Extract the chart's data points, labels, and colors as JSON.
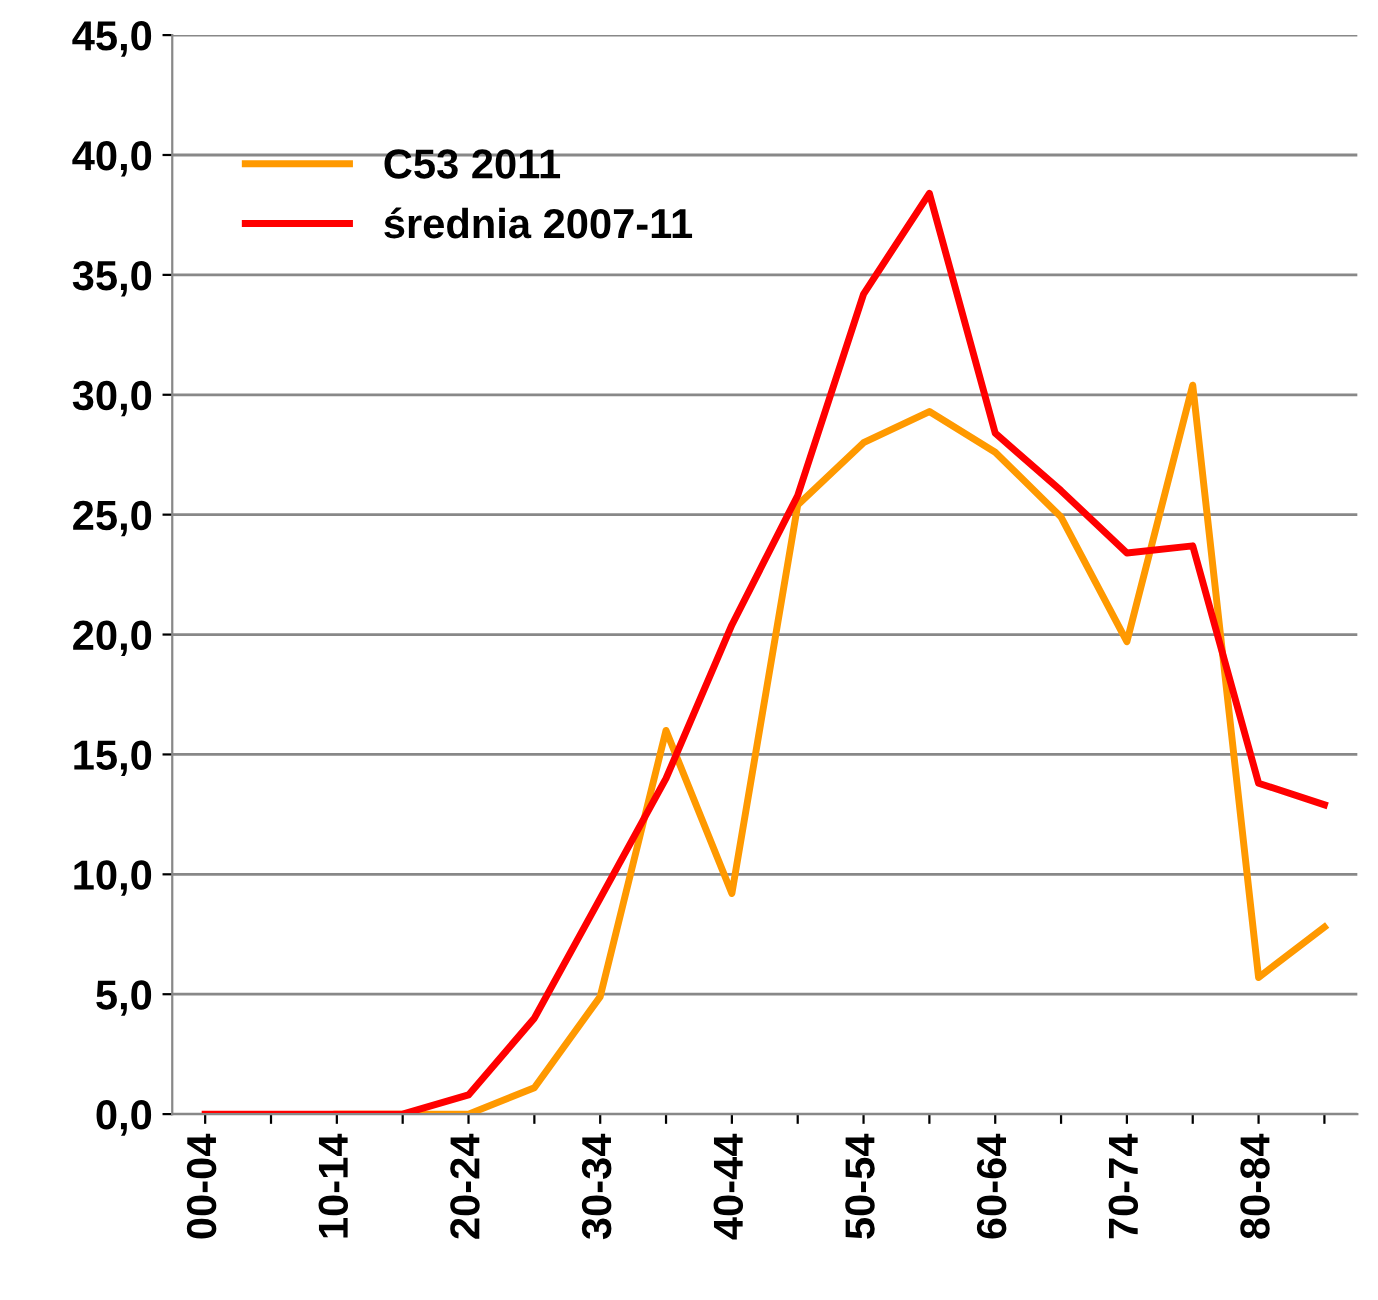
{
  "chart_data": {
    "type": "line",
    "categories": [
      "00-04",
      null,
      "10-14",
      null,
      "20-24",
      null,
      "30-34",
      null,
      "40-44",
      null,
      "50-54",
      null,
      "60-64",
      null,
      "70-74",
      null,
      "80-84",
      null
    ],
    "series": [
      {
        "name": "C53 2011",
        "color": "#ff9900",
        "values": [
          null,
          null,
          0,
          0,
          0,
          1.1,
          4.9,
          16.0,
          9.2,
          25.4,
          28.0,
          29.3,
          27.6,
          24.9,
          19.7,
          30.4,
          5.7,
          7.8
        ]
      },
      {
        "name": "średnia 2007-11",
        "color": "#ff0000",
        "values": [
          0,
          0,
          0,
          0,
          0.8,
          4.0,
          9.0,
          14.0,
          20.4,
          25.8,
          34.2,
          38.4,
          28.4,
          26.0,
          23.4,
          23.7,
          13.8,
          12.9
        ]
      }
    ],
    "ylim": [
      0,
      45
    ],
    "yticks": [
      {
        "value": 0,
        "label": "0,0"
      },
      {
        "value": 5,
        "label": "5,0"
      },
      {
        "value": 10,
        "label": "10,0"
      },
      {
        "value": 15,
        "label": "15,0"
      },
      {
        "value": 20,
        "label": "20,0"
      },
      {
        "value": 25,
        "label": "25,0"
      },
      {
        "value": 30,
        "label": "30,0"
      },
      {
        "value": 35,
        "label": "35,0"
      },
      {
        "value": 40,
        "label": "40,0"
      },
      {
        "value": 45,
        "label": "45,0"
      }
    ],
    "grid": "y",
    "legend": "top left",
    "marker": "none",
    "line_style": "solid"
  }
}
